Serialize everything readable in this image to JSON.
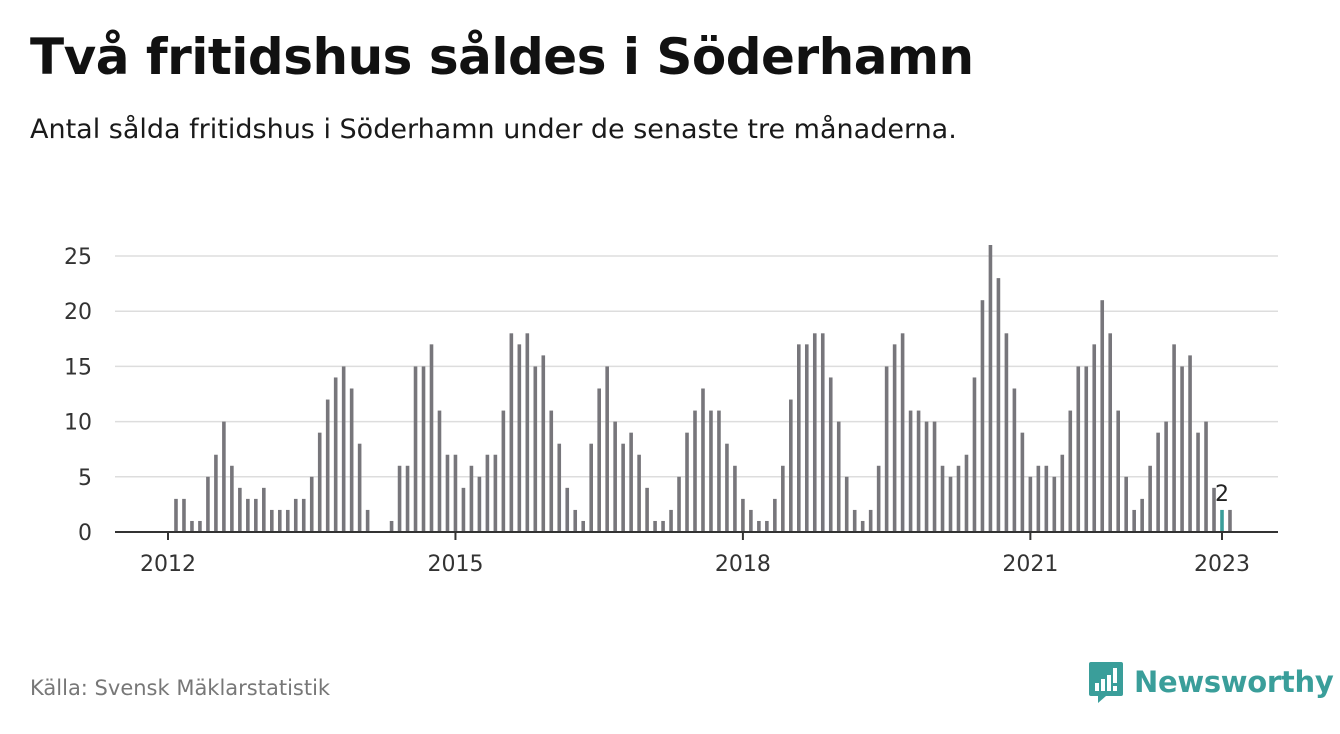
{
  "title": "Två fritidshus såldes i Söderhamn",
  "subtitle": "Antal sålda fritidshus i Söderhamn under de senaste tre månaderna.",
  "source": "Källa: Svensk Mäklarstatistik",
  "brand": {
    "name": "Newsworthy",
    "icon": "newsworthy-logo-icon",
    "color": "#3a9e9a"
  },
  "chart_data": {
    "type": "bar",
    "title": "Två fritidshus såldes i Söderhamn",
    "subtitle": "Antal sålda fritidshus i Söderhamn under de senaste tre månaderna.",
    "xlabel": "",
    "ylabel": "",
    "ylim": [
      0,
      26
    ],
    "yticks": [
      0,
      5,
      10,
      15,
      20,
      25
    ],
    "x_start": "2012-01",
    "x_end": "2023-01",
    "xticks": [
      {
        "label": "2012",
        "x": "2012-01"
      },
      {
        "label": "2015",
        "x": "2015-01"
      },
      {
        "label": "2018",
        "x": "2018-01"
      },
      {
        "label": "2021",
        "x": "2021-01"
      },
      {
        "label": "2023",
        "x": "2023-01"
      }
    ],
    "grid": true,
    "legend": "none",
    "bar_color": "#77767b",
    "highlight_color": "#3a9e9a",
    "highlight": {
      "x": "2023-01",
      "value": 2,
      "label": "2"
    },
    "series": [
      {
        "values": [
          0,
          3,
          3,
          1,
          1,
          5,
          7,
          10,
          6,
          4,
          3,
          3,
          4,
          2,
          2,
          2,
          3,
          3,
          5,
          9,
          12,
          14,
          15,
          13,
          8,
          2,
          0,
          0,
          1,
          6,
          6,
          15,
          15,
          17,
          11,
          7,
          7,
          4,
          6,
          5,
          7,
          7,
          11,
          18,
          17,
          18,
          15,
          16,
          11,
          8,
          4,
          2,
          1,
          8,
          13,
          15,
          10,
          8,
          9,
          7,
          4,
          1,
          1,
          2,
          5,
          9,
          11,
          13,
          11,
          11,
          8,
          6,
          3,
          2,
          1,
          1,
          3,
          6,
          12,
          17,
          17,
          18,
          18,
          14,
          10,
          5,
          2,
          1,
          2,
          6,
          15,
          17,
          18,
          11,
          11,
          10,
          10,
          6,
          5,
          6,
          7,
          14,
          21,
          26,
          23,
          18,
          13,
          9,
          5,
          6,
          6,
          5,
          7,
          11,
          15,
          15,
          17,
          21,
          18,
          11,
          5,
          2,
          3,
          6,
          9,
          10,
          17,
          15,
          16,
          9,
          10,
          4,
          2,
          2
        ]
      }
    ]
  }
}
